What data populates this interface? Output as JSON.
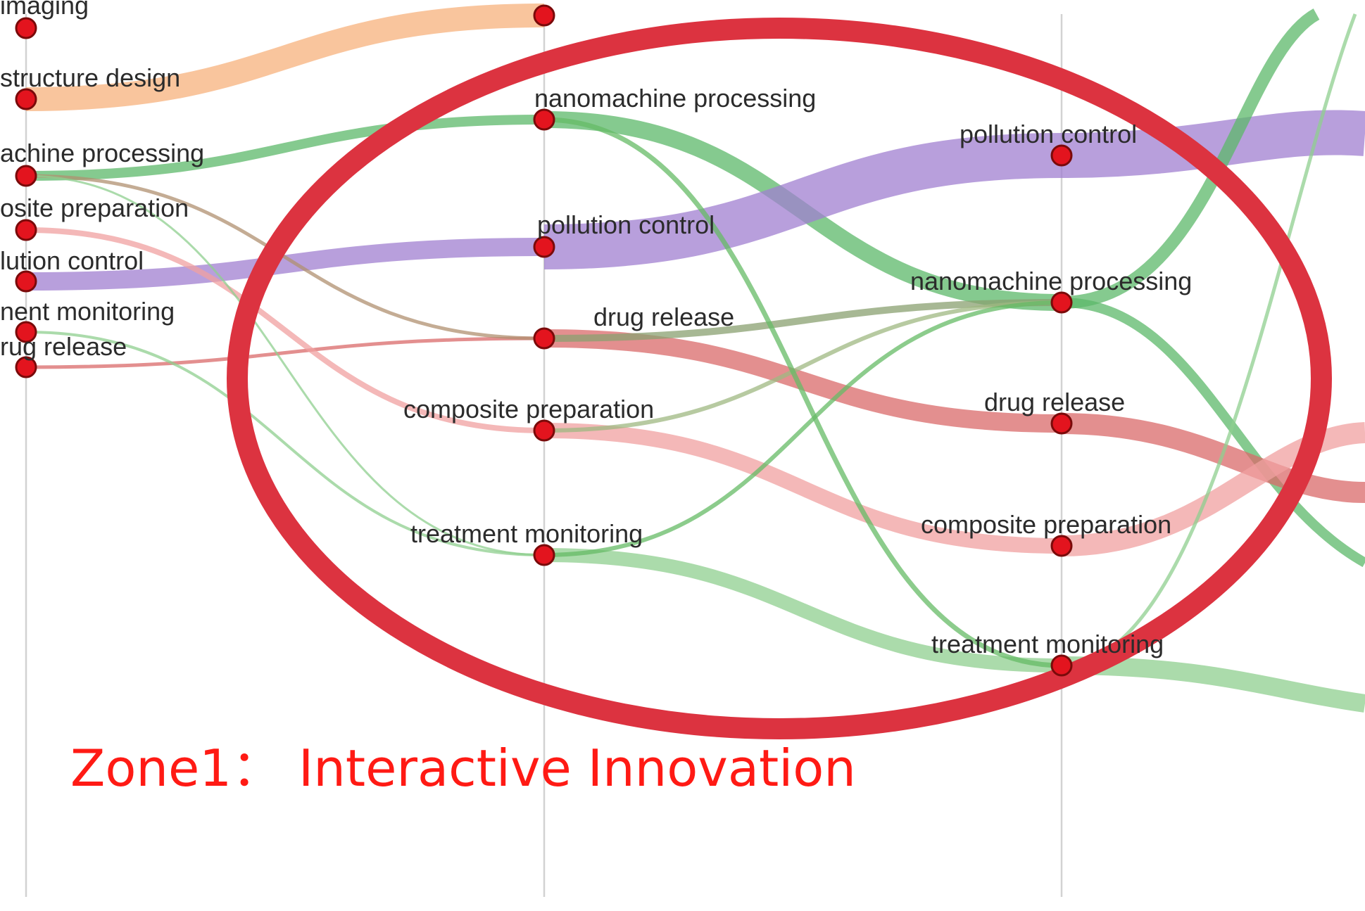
{
  "diagram": {
    "type": "topic-evolution-flow",
    "zone_title": "Zone1：  Interactive Innovation",
    "colors": {
      "highlight_ellipse": "#dc3340",
      "zone_title": "#ff1a14",
      "node_fill": "#e3141e",
      "axis_line": "#d2d2d2"
    },
    "columns": [
      {
        "id": "col1",
        "nodes": [
          {
            "id": "c1-imaging",
            "label": "imaging"
          },
          {
            "id": "c1-structure",
            "label": "structure design"
          },
          {
            "id": "c1-nano",
            "label": "achine processing"
          },
          {
            "id": "c1-composite",
            "label": "osite preparation"
          },
          {
            "id": "c1-pollution",
            "label": "lution control"
          },
          {
            "id": "c1-treatment",
            "label": "nent monitoring"
          },
          {
            "id": "c1-drug",
            "label": "rug release"
          }
        ]
      },
      {
        "id": "col2",
        "nodes": [
          {
            "id": "c2-top",
            "label": ""
          },
          {
            "id": "c2-nano",
            "label": "nanomachine processing"
          },
          {
            "id": "c2-pollution",
            "label": "pollution control"
          },
          {
            "id": "c2-drug",
            "label": "drug release"
          },
          {
            "id": "c2-composite",
            "label": "composite preparation"
          },
          {
            "id": "c2-treatment",
            "label": "treatment monitoring"
          }
        ]
      },
      {
        "id": "col3",
        "nodes": [
          {
            "id": "c3-pollution",
            "label": "pollution control"
          },
          {
            "id": "c3-nano",
            "label": "nanomachine processing"
          },
          {
            "id": "c3-drug",
            "label": "drug release"
          },
          {
            "id": "c3-composite",
            "label": "composite preparation"
          },
          {
            "id": "c3-treatment",
            "label": "treatment monitoring"
          }
        ]
      }
    ],
    "flows": [
      {
        "from": "c1-structure",
        "to": "c2-top",
        "color": "#f7b27c"
      },
      {
        "from": "c1-nano",
        "to": "c2-nano",
        "color": "#5cb86a"
      },
      {
        "from": "c2-nano",
        "to": "c3-nano",
        "color": "#5cb86a"
      },
      {
        "from": "c1-pollution",
        "to": "c2-pollution",
        "color": "#a07fd0"
      },
      {
        "from": "c2-pollution",
        "to": "c3-pollution",
        "color": "#a07fd0"
      },
      {
        "from": "c1-drug",
        "to": "c2-drug",
        "color": "#d96a6a"
      },
      {
        "from": "c2-drug",
        "to": "c3-drug",
        "color": "#d96a6a"
      },
      {
        "from": "c2-drug",
        "to": "c3-nano",
        "color": "#8aa070"
      },
      {
        "from": "c1-composite",
        "to": "c2-composite",
        "color": "#f0a0a0"
      },
      {
        "from": "c2-composite",
        "to": "c3-composite",
        "color": "#f0a0a0"
      },
      {
        "from": "c2-composite",
        "to": "c3-nano",
        "color": "#9fb882"
      },
      {
        "from": "c1-treatment",
        "to": "c2-treatment",
        "color": "#8fcf8f"
      },
      {
        "from": "c2-treatment",
        "to": "c3-treatment",
        "color": "#8fcf8f"
      },
      {
        "from": "c2-treatment",
        "to": "c3-nano",
        "color": "#66bb66"
      },
      {
        "from": "c2-nano",
        "to": "c3-treatment",
        "color": "#66bb66"
      },
      {
        "from": "c1-nano",
        "to": "c2-drug",
        "color": "#b09070"
      },
      {
        "from": "c1-nano",
        "to": "c2-treatment",
        "color": "#8fcf8f"
      }
    ]
  }
}
